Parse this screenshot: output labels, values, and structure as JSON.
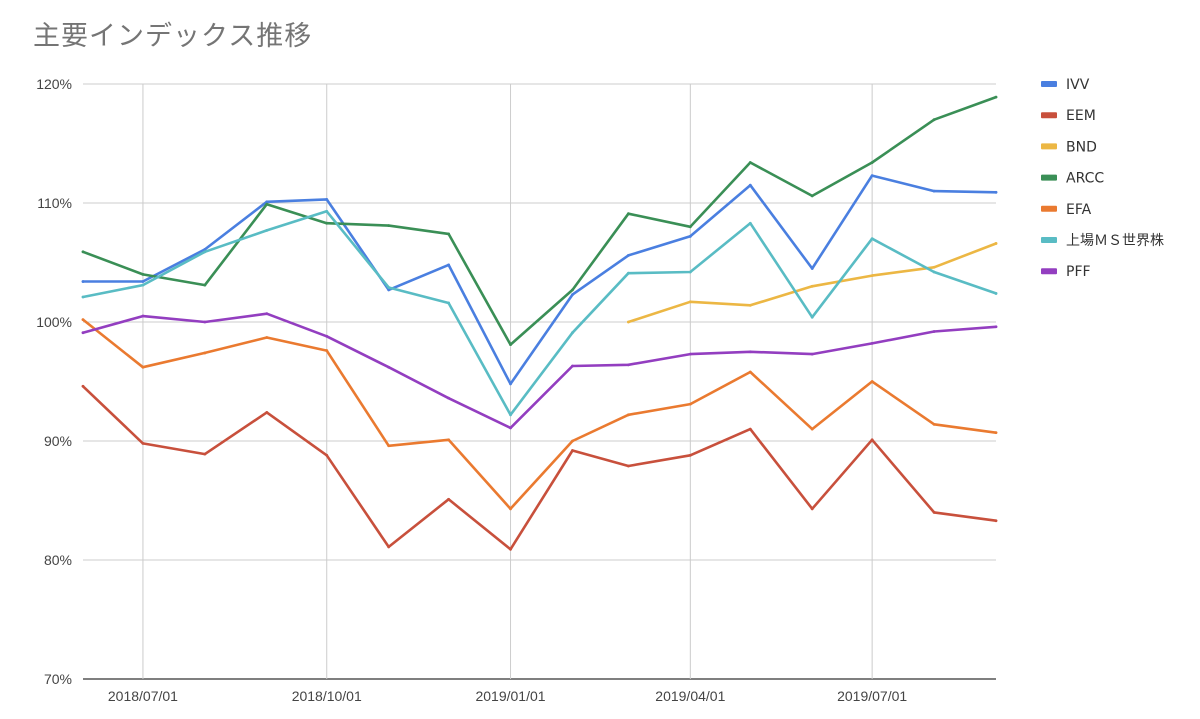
{
  "chart_data": {
    "type": "line",
    "title": "主要インデックス推移",
    "xlabel": "",
    "ylabel": "",
    "x": [
      "2018/06/01",
      "2018/07/01",
      "2018/08/01",
      "2018/09/01",
      "2018/10/01",
      "2018/11/01",
      "2018/12/01",
      "2019/01/01",
      "2019/02/01",
      "2019/03/01",
      "2019/04/01",
      "2019/05/01",
      "2019/06/01",
      "2019/07/01",
      "2019/08/01",
      "2019/09/01"
    ],
    "x_tick_labels": [
      "2018/07/01",
      "2018/10/01",
      "2019/01/01",
      "2019/04/01",
      "2019/07/01"
    ],
    "x_tick_dates": [
      "2018/07/01",
      "2018/10/01",
      "2019/01/01",
      "2019/04/01",
      "2019/07/01"
    ],
    "y_tick_labels": [
      "70%",
      "80%",
      "90%",
      "100%",
      "110%",
      "120%"
    ],
    "y_tick_values": [
      70,
      80,
      90,
      100,
      110,
      120
    ],
    "ylim": [
      70,
      120
    ],
    "grid": true,
    "legend_position": "right",
    "series": [
      {
        "name": "IVV",
        "color": "#4a7fe0",
        "values": [
          103.4,
          103.4,
          106.1,
          110.1,
          110.3,
          102.7,
          104.8,
          94.8,
          102.3,
          105.6,
          107.2,
          111.5,
          104.5,
          112.3,
          111.0,
          110.9
        ]
      },
      {
        "name": "EEM",
        "color": "#c8503c",
        "values": [
          94.6,
          89.8,
          88.9,
          92.4,
          88.8,
          81.1,
          85.1,
          80.9,
          89.2,
          87.9,
          88.8,
          91.0,
          84.3,
          90.1,
          84.0,
          83.3
        ]
      },
      {
        "name": "BND",
        "color": "#ecb744",
        "values": [
          null,
          null,
          null,
          null,
          null,
          null,
          null,
          null,
          null,
          100.0,
          101.7,
          101.4,
          103.0,
          103.9,
          104.6,
          106.6
        ]
      },
      {
        "name": "ARCC",
        "color": "#3a8f56",
        "values": [
          105.9,
          104.0,
          103.1,
          109.9,
          108.3,
          108.1,
          107.4,
          98.1,
          102.7,
          109.1,
          108.0,
          113.4,
          110.6,
          113.4,
          117.0,
          118.9
        ]
      },
      {
        "name": "EFA",
        "color": "#ea7a30",
        "values": [
          100.2,
          96.2,
          97.4,
          98.7,
          97.6,
          89.6,
          90.1,
          84.3,
          90.0,
          92.2,
          93.1,
          95.8,
          91.0,
          95.0,
          91.4,
          90.7
        ]
      },
      {
        "name": "上場ＭＳ世界株",
        "color": "#59bcc4",
        "values": [
          102.1,
          103.1,
          105.9,
          107.7,
          109.3,
          102.9,
          101.6,
          92.2,
          99.1,
          104.1,
          104.2,
          108.3,
          100.4,
          107.0,
          104.2,
          102.4
        ]
      },
      {
        "name": "PFF",
        "color": "#933ec0",
        "values": [
          99.1,
          100.5,
          100.0,
          100.7,
          98.8,
          96.2,
          93.6,
          91.1,
          96.3,
          96.4,
          97.3,
          97.5,
          97.3,
          98.2,
          99.2,
          99.6
        ]
      }
    ]
  }
}
